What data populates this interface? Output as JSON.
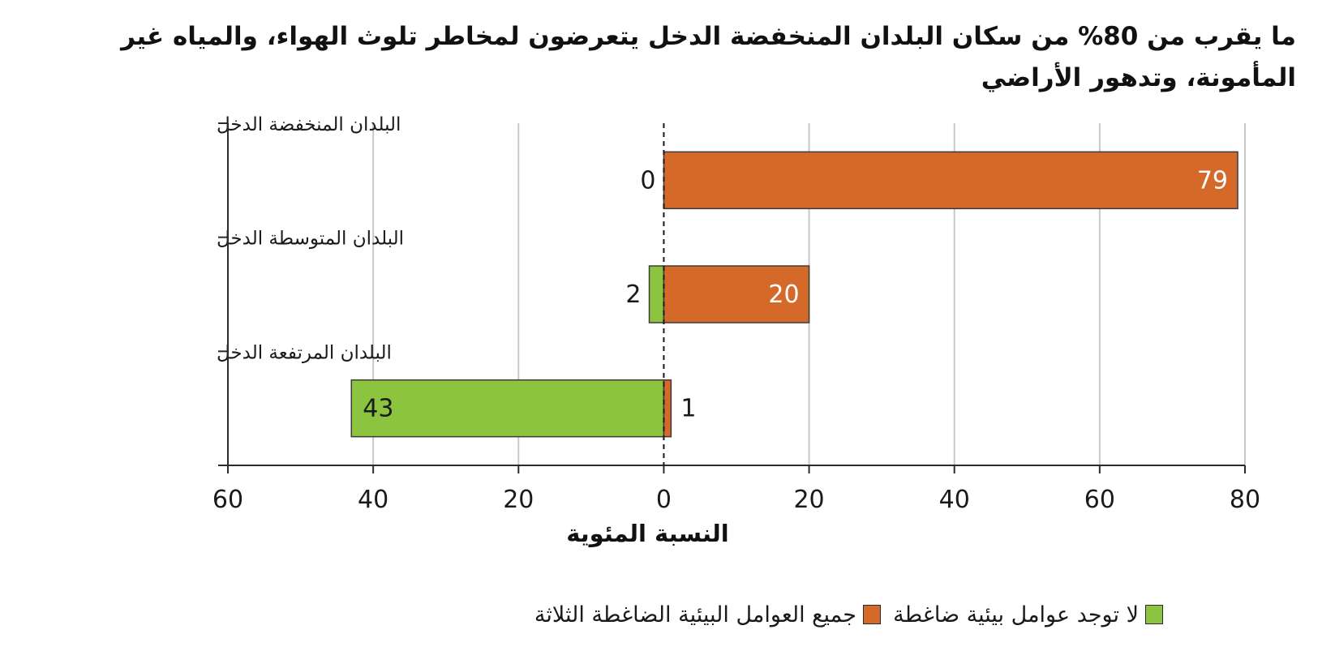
{
  "title": "ما يقرب من 80% من سكان البلدان المنخفضة الدخل يتعرضون لمخاطر تلوث الهواء، والمياه غير المأمونة، وتدهور الأراضي",
  "colors": {
    "all_pressures": "#d4692a",
    "no_pressure": "#8cc43f",
    "axis": "#2b2b2b",
    "grid": "#c8c8c8"
  },
  "legend": {
    "no_pressure_label": "لا توجد عوامل بيئية ضاغطة",
    "all_pressures_label": "جميع العوامل البيئية الضاغطة الثلاثة"
  },
  "chart_data": {
    "type": "bar",
    "orientation": "horizontal",
    "categories": [
      "البلدان المنخفضة الدخل",
      "البلدان المتوسطة الدخل",
      "البلدان المرتفعة الدخل"
    ],
    "series": [
      {
        "name": "لا توجد عوامل بيئية ضاغطة",
        "values": [
          0,
          2,
          43
        ],
        "color": "#8cc43f",
        "direction": "negative"
      },
      {
        "name": "جميع العوامل البيئية الضاغطة الثلاثة",
        "values": [
          79,
          20,
          1
        ],
        "color": "#d4692a",
        "direction": "positive"
      }
    ],
    "x_ticks": [
      "60",
      "40",
      "20",
      "0",
      "20",
      "40",
      "60",
      "80"
    ],
    "x_tick_values": [
      -60,
      -40,
      -20,
      0,
      20,
      40,
      60,
      80
    ],
    "xlim": [
      -60,
      80
    ],
    "xlabel": "النسبة المئوية",
    "ylabel": "",
    "grid": true,
    "legend_position": "bottom"
  }
}
